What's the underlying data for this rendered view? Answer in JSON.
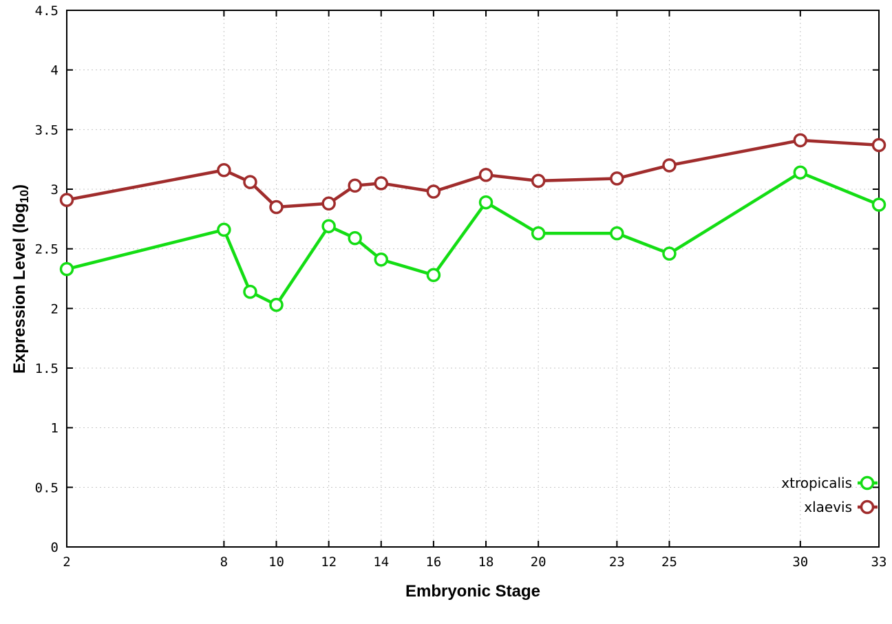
{
  "chart_data": {
    "type": "line",
    "title": "",
    "xlabel": "Embryonic Stage",
    "ylabel": "Expression Level (log10)",
    "ylabel_parts": {
      "pre": "Expression Level (log",
      "sub": "10",
      "post": ")"
    },
    "xlim": [
      2,
      33
    ],
    "ylim": [
      0,
      4.5
    ],
    "xticks": [
      2,
      8,
      10,
      12,
      14,
      16,
      18,
      20,
      23,
      25,
      30,
      33
    ],
    "yticks": [
      0,
      0.5,
      1,
      1.5,
      2,
      2.5,
      3,
      3.5,
      4,
      4.5
    ],
    "ytick_labels": [
      "0",
      "0.5",
      "1",
      "1.5",
      "2",
      "2.5",
      "3",
      "3.5",
      "4",
      "4.5"
    ],
    "grid": true,
    "legend_position": "bottom-right",
    "x": [
      2,
      8,
      9,
      10,
      12,
      13,
      14,
      16,
      18,
      20,
      23,
      25,
      30,
      33
    ],
    "series": [
      {
        "name": "xtropicalis",
        "color": "#14dd14",
        "values": [
          2.33,
          2.66,
          2.14,
          2.03,
          2.69,
          2.59,
          2.41,
          2.28,
          2.89,
          2.63,
          2.63,
          2.46,
          3.14,
          2.87
        ]
      },
      {
        "name": "xlaevis",
        "color": "#a02c2c",
        "values": [
          2.91,
          3.16,
          3.06,
          2.85,
          2.88,
          3.03,
          3.05,
          2.98,
          3.12,
          3.07,
          3.09,
          3.2,
          3.41,
          3.37
        ]
      }
    ]
  }
}
